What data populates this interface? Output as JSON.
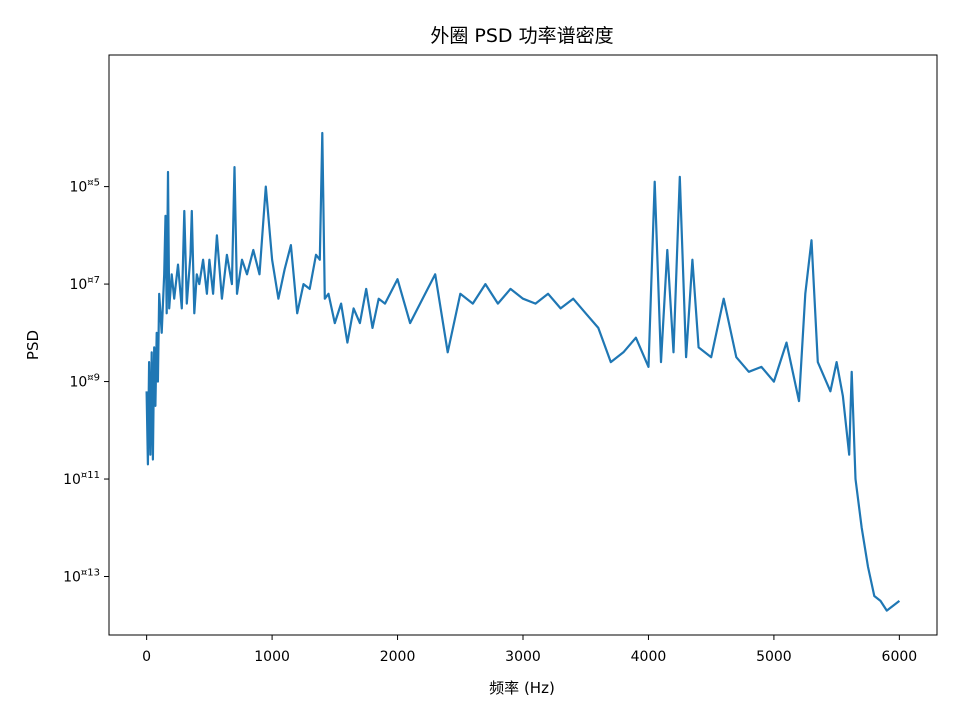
{
  "chart_data": {
    "type": "line",
    "title": "外圈 PSD 功率谱密度",
    "xlabel": "频率 (Hz)",
    "ylabel": "PSD",
    "xlim": [
      -300,
      6300
    ],
    "ylim_log10": [
      -14.2,
      -2.3
    ],
    "yscale": "log",
    "grid": false,
    "legend": "none",
    "line_color": "#1f77b4",
    "x_ticks": [
      {
        "value": 0,
        "label": "0"
      },
      {
        "value": 1000,
        "label": "1000"
      },
      {
        "value": 2000,
        "label": "2000"
      },
      {
        "value": 3000,
        "label": "3000"
      },
      {
        "value": 4000,
        "label": "4000"
      },
      {
        "value": 5000,
        "label": "5000"
      },
      {
        "value": 6000,
        "label": "6000"
      }
    ],
    "y_ticks": [
      {
        "log10": -5,
        "base": "10",
        "exp": "¤5"
      },
      {
        "log10": -7,
        "base": "10",
        "exp": "¤7"
      },
      {
        "log10": -9,
        "base": "10",
        "exp": "¤9"
      },
      {
        "log10": -11,
        "base": "10",
        "exp": "¤11"
      },
      {
        "log10": -13,
        "base": "10",
        "exp": "¤13"
      }
    ],
    "series": [
      {
        "x": [
          0,
          10,
          20,
          30,
          40,
          50,
          60,
          70,
          80,
          90,
          100,
          120,
          140,
          150,
          160,
          170,
          180,
          200,
          220,
          250,
          280,
          300,
          320,
          350,
          360,
          380,
          400,
          420,
          450,
          480,
          500,
          530,
          560,
          600,
          640,
          680,
          700,
          720,
          760,
          800,
          850,
          900,
          950,
          1000,
          1050,
          1100,
          1150,
          1200,
          1250,
          1300,
          1350,
          1380,
          1400,
          1420,
          1450,
          1500,
          1550,
          1600,
          1650,
          1700,
          1750,
          1800,
          1850,
          1900,
          2000,
          2100,
          2200,
          2300,
          2400,
          2500,
          2600,
          2700,
          2800,
          2900,
          3000,
          3100,
          3200,
          3300,
          3400,
          3500,
          3600,
          3700,
          3800,
          3900,
          4000,
          4050,
          4100,
          4150,
          4200,
          4250,
          4300,
          4350,
          4400,
          4500,
          4600,
          4700,
          4800,
          4900,
          5000,
          5100,
          5200,
          5250,
          5300,
          5350,
          5400,
          5450,
          5500,
          5550,
          5600,
          5620,
          5650,
          5700,
          5750,
          5800,
          5850,
          5900,
          5950,
          6000
        ],
        "log10_values": [
          -9.2,
          -10.7,
          -8.6,
          -10.5,
          -8.4,
          -10.6,
          -8.3,
          -9.5,
          -8.0,
          -9.0,
          -7.2,
          -8.0,
          -6.8,
          -5.6,
          -7.6,
          -4.7,
          -7.5,
          -6.8,
          -7.3,
          -6.6,
          -7.5,
          -5.5,
          -7.4,
          -6.4,
          -5.5,
          -7.6,
          -6.8,
          -7.0,
          -6.5,
          -7.2,
          -6.5,
          -7.2,
          -6.0,
          -7.3,
          -6.4,
          -7.0,
          -4.6,
          -7.2,
          -6.5,
          -6.8,
          -6.3,
          -6.8,
          -5.0,
          -6.5,
          -7.3,
          -6.7,
          -6.2,
          -7.6,
          -7.0,
          -7.1,
          -6.4,
          -6.5,
          -3.9,
          -7.3,
          -7.2,
          -7.8,
          -7.4,
          -8.2,
          -7.5,
          -7.8,
          -7.1,
          -7.9,
          -7.3,
          -7.4,
          -6.9,
          -7.8,
          -7.3,
          -6.8,
          -8.4,
          -7.2,
          -7.4,
          -7.0,
          -7.4,
          -7.1,
          -7.3,
          -7.4,
          -7.2,
          -7.5,
          -7.3,
          -7.6,
          -7.9,
          -8.6,
          -8.4,
          -8.1,
          -8.7,
          -4.9,
          -8.6,
          -6.3,
          -8.4,
          -4.8,
          -8.5,
          -6.5,
          -8.3,
          -8.5,
          -7.3,
          -8.5,
          -8.8,
          -8.7,
          -9.0,
          -8.2,
          -9.4,
          -7.2,
          -6.1,
          -8.6,
          -8.9,
          -9.2,
          -8.6,
          -9.3,
          -10.5,
          -8.8,
          -11.0,
          -12.0,
          -12.8,
          -13.4,
          -13.5,
          -13.7,
          -13.6,
          -13.5
        ]
      }
    ]
  }
}
